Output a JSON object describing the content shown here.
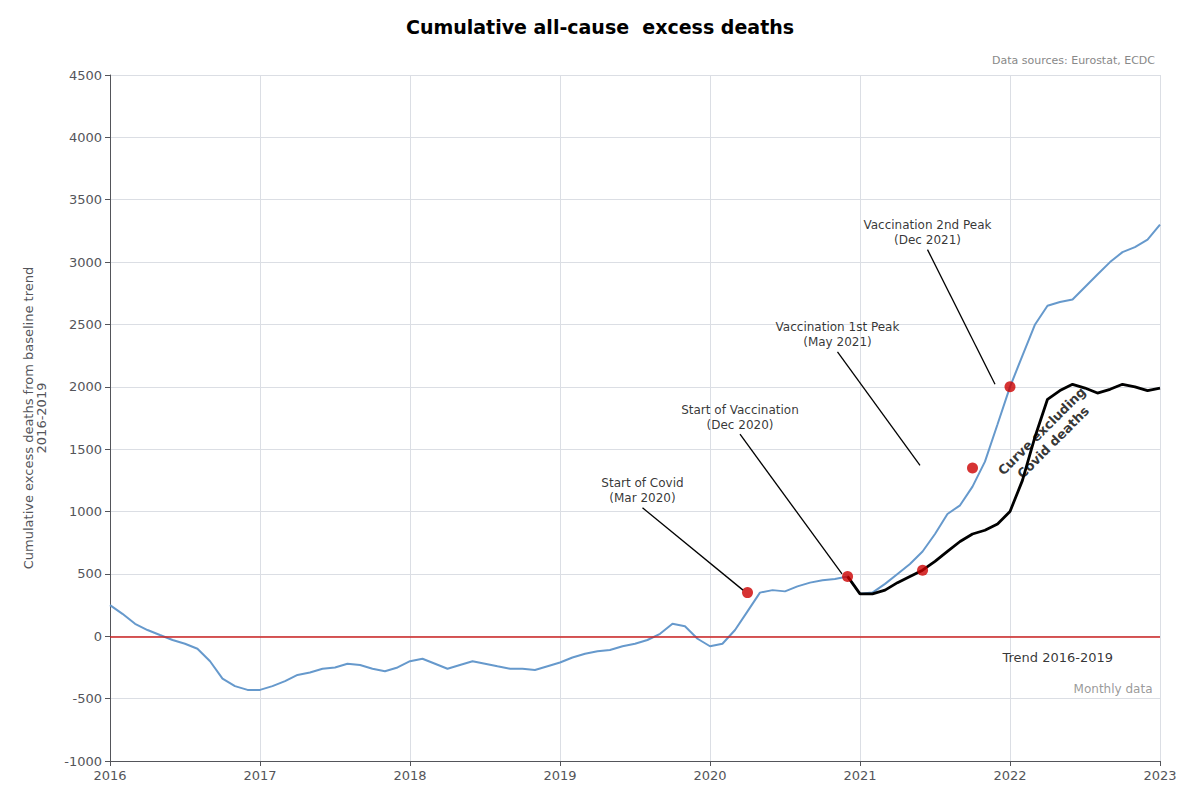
{
  "chart_data": {
    "type": "line",
    "title": "Cumulative all-cause  excess deaths",
    "ylabel": "Cumulative excess deaths from baseline trend\n2016-2019",
    "source": "Data sources: Eurostat, ECDC",
    "xlim": [
      2016,
      2023
    ],
    "xticks": [
      2016,
      2017,
      2018,
      2019,
      2020,
      2021,
      2022,
      2023
    ],
    "ylim": [
      -1000,
      4500
    ],
    "yticks": [
      -1000,
      -500,
      0,
      500,
      1000,
      1500,
      2000,
      2500,
      3000,
      3500,
      4000,
      4500
    ],
    "grid": true,
    "reference_lines": [
      {
        "y": 0,
        "color": "#cc2222"
      }
    ],
    "series": [
      {
        "type": "line",
        "color": "#6699cc",
        "x": [
          2016,
          2016.083,
          2016.167,
          2016.25,
          2016.333,
          2016.417,
          2016.5,
          2016.583,
          2016.667,
          2016.75,
          2016.833,
          2016.917,
          2017,
          2017.083,
          2017.167,
          2017.25,
          2017.333,
          2017.417,
          2017.5,
          2017.583,
          2017.667,
          2017.75,
          2017.833,
          2017.917,
          2018,
          2018.083,
          2018.167,
          2018.25,
          2018.333,
          2018.417,
          2018.5,
          2018.583,
          2018.667,
          2018.75,
          2018.833,
          2018.917,
          2019,
          2019.083,
          2019.167,
          2019.25,
          2019.333,
          2019.417,
          2019.5,
          2019.583,
          2019.667,
          2019.75,
          2019.833,
          2019.917,
          2020,
          2020.083,
          2020.167,
          2020.25,
          2020.333,
          2020.417,
          2020.5,
          2020.583,
          2020.667,
          2020.75,
          2020.833,
          2020.917,
          2021,
          2021.083,
          2021.167,
          2021.25,
          2021.333,
          2021.417,
          2021.5,
          2021.583,
          2021.667,
          2021.75,
          2021.833,
          2021.917,
          2022,
          2022.083,
          2022.167,
          2022.25,
          2022.333,
          2022.417,
          2022.5,
          2022.583,
          2022.667,
          2022.75,
          2022.833,
          2022.917,
          2023
        ],
        "values": [
          250,
          180,
          100,
          50,
          10,
          -30,
          -60,
          -100,
          -200,
          -340,
          -400,
          -430,
          -430,
          -400,
          -360,
          -310,
          -290,
          -260,
          -250,
          -220,
          -230,
          -260,
          -280,
          -250,
          -200,
          -180,
          -220,
          -260,
          -230,
          -200,
          -220,
          -240,
          -260,
          -260,
          -270,
          -240,
          -210,
          -170,
          -140,
          -120,
          -110,
          -80,
          -60,
          -30,
          20,
          100,
          80,
          -20,
          -80,
          -60,
          50,
          200,
          350,
          370,
          360,
          400,
          430,
          450,
          460,
          480,
          340,
          350,
          420,
          500,
          580,
          680,
          820,
          980,
          1050,
          1200,
          1400,
          1700,
          2000,
          2250,
          2500,
          2650,
          2680,
          2700,
          2800,
          2900,
          3000,
          3080,
          3120,
          3180,
          3300
        ]
      },
      {
        "type": "line",
        "color": "#000000",
        "x": [
          2020.917,
          2021,
          2021.083,
          2021.167,
          2021.25,
          2021.333,
          2021.417,
          2021.5,
          2021.583,
          2021.667,
          2021.75,
          2021.833,
          2021.917,
          2022,
          2022.083,
          2022.167,
          2022.25,
          2022.333,
          2022.417,
          2022.5,
          2022.583,
          2022.667,
          2022.75,
          2022.833,
          2022.917,
          2023
        ],
        "values": [
          480,
          340,
          340,
          370,
          430,
          480,
          530,
          600,
          680,
          760,
          820,
          850,
          900,
          1000,
          1250,
          1600,
          1900,
          1970,
          2020,
          1990,
          1950,
          1980,
          2020,
          2000,
          1970,
          1990
        ]
      },
      {
        "type": "scatter",
        "color": "#cc0000",
        "x": [
          2020.25,
          2020.917,
          2021.417,
          2021.75,
          2022.0
        ],
        "values": [
          350,
          480,
          530,
          1350,
          2000
        ]
      }
    ],
    "annotations": [
      {
        "text": "Start of Covid\n(Mar 2020)",
        "x": 2019.55,
        "y": 1030,
        "point_x": 2020.22,
        "point_y": 370
      },
      {
        "text": "Start of Vaccination\n(Dec 2020)",
        "x": 2020.2,
        "y": 1620,
        "point_x": 2020.88,
        "point_y": 500
      },
      {
        "text": "Vaccination 1st Peak\n(May 2021)",
        "x": 2020.85,
        "y": 2280,
        "point_x": 2021.4,
        "point_y": 1370
      },
      {
        "text": "Vaccination 2nd Peak\n(Dec 2021)",
        "x": 2021.45,
        "y": 3100,
        "point_x": 2021.9,
        "point_y": 2020
      }
    ],
    "curve_label": {
      "text": "Curve excluding\nCovid deaths",
      "x": 2022.25,
      "y": 1600
    },
    "trend_label": {
      "text": "Trend 2016-2019",
      "x": 2021.95,
      "y": -170
    },
    "monthly_label": {
      "text": "Monthly data",
      "x": 2022.95,
      "y": -420
    }
  }
}
